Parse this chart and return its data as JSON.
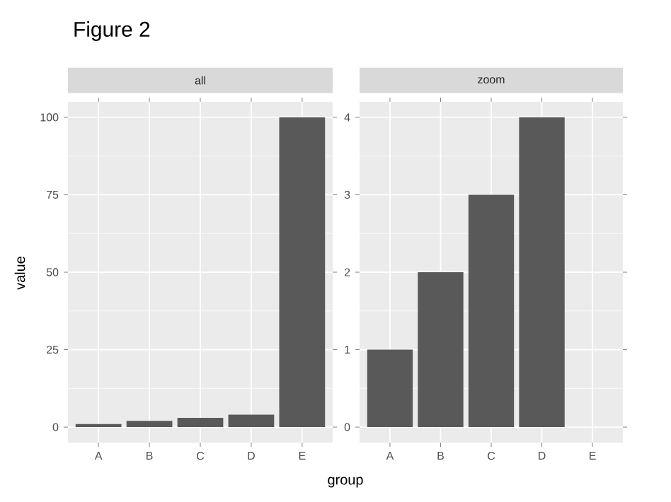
{
  "chart_data": [
    {
      "type": "bar",
      "title": "Figure 2",
      "subtitle": "all",
      "xlabel": "group",
      "ylabel": "value",
      "categories": [
        "A",
        "B",
        "C",
        "D",
        "E"
      ],
      "values": [
        1,
        2,
        3,
        4,
        100
      ],
      "color": "#595959",
      "ylim": [
        -5,
        105
      ],
      "yticks": [
        0,
        25,
        50,
        75,
        100
      ],
      "grid": true
    },
    {
      "type": "bar",
      "subtitle": "zoom",
      "categories": [
        "A",
        "B",
        "C",
        "D",
        "E"
      ],
      "values": [
        1,
        2,
        3,
        4,
        null
      ],
      "color": "#595959",
      "ylim": [
        -0.2,
        4.2
      ],
      "yticks": [
        0,
        1,
        2,
        3,
        4
      ],
      "grid": true
    }
  ]
}
